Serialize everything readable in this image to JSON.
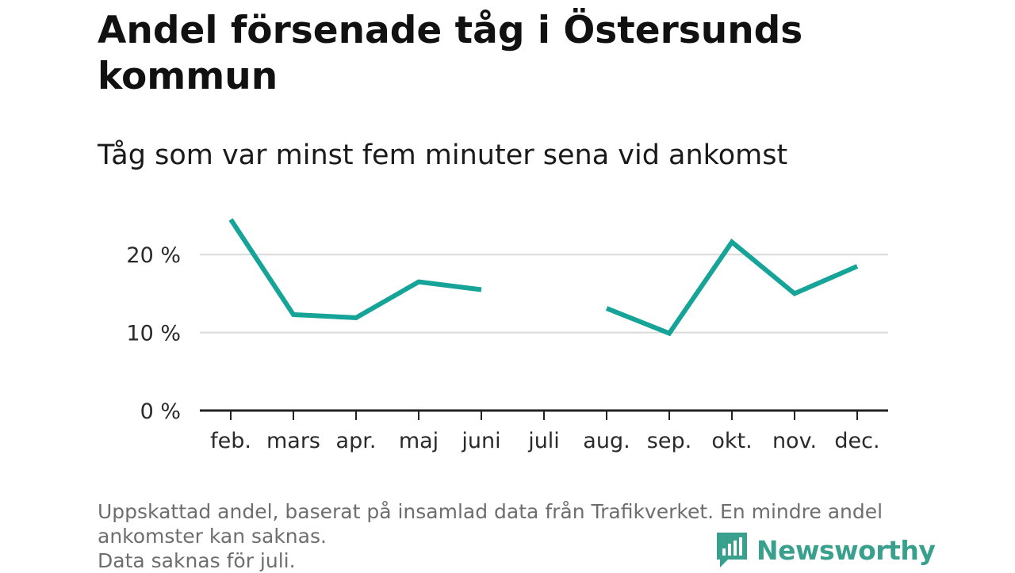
{
  "title": "Andel försenade tåg i Östersunds kommun",
  "subtitle": "Tåg som var minst fem minuter sena vid ankomst",
  "footnote": {
    "line1": "Uppskattad andel, baserat på insamlad data från Trafikverket. En mindre andel",
    "line2": "ankomster kan saknas.",
    "line3": "Data saknas för juli."
  },
  "brand": {
    "name": "Newsworthy",
    "color": "#3aa08e"
  },
  "colors": {
    "line": "#16a398",
    "grid": "#d9d9d9",
    "axis": "#222222"
  },
  "chart_data": {
    "type": "line",
    "categories": [
      "feb.",
      "mars",
      "apr.",
      "maj",
      "juni",
      "juli",
      "aug.",
      "sep.",
      "okt.",
      "nov.",
      "dec."
    ],
    "values": [
      24.5,
      12.3,
      11.9,
      16.5,
      15.5,
      null,
      13.1,
      9.9,
      21.6,
      15.0,
      18.5
    ],
    "yticks": [
      {
        "value": 0,
        "label": "0 %"
      },
      {
        "value": 10,
        "label": "10 %"
      },
      {
        "value": 20,
        "label": "20 %"
      }
    ],
    "ylim": [
      0,
      25
    ],
    "grid": true,
    "xlabel": "",
    "ylabel": ""
  }
}
